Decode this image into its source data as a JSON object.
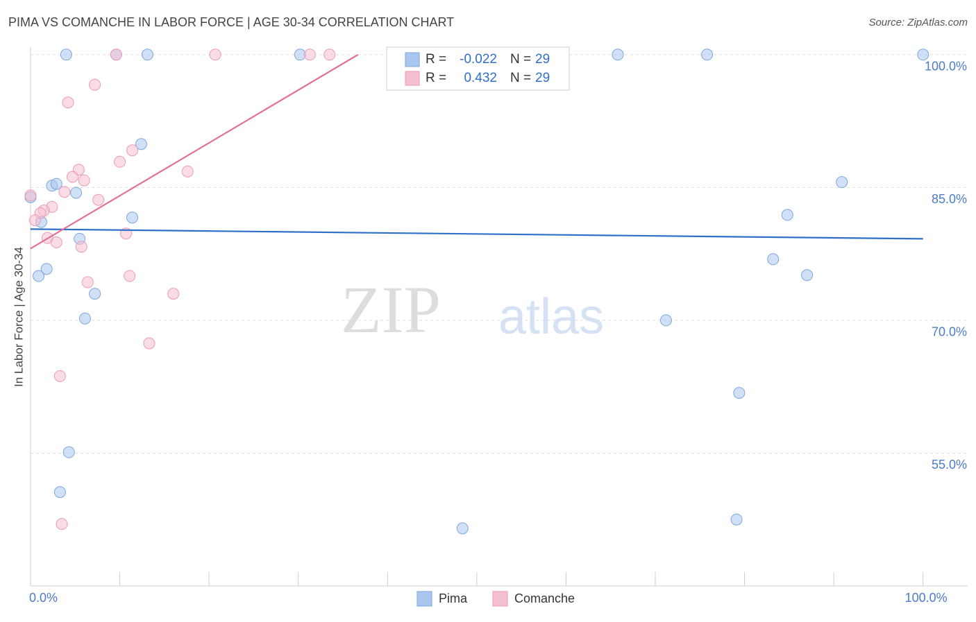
{
  "chart_data": {
    "type": "scatter",
    "title": "PIMA VS COMANCHE IN LABOR FORCE | AGE 30-34 CORRELATION CHART",
    "source": "Source: ZipAtlas.com",
    "y_label": "In Labor Force | Age 30-34",
    "watermark": [
      "ZIP",
      "atlas"
    ],
    "xlim": [
      0,
      105
    ],
    "ylim": [
      40,
      101
    ],
    "xticks": [
      {
        "value": 0,
        "label": "0.0%"
      },
      {
        "value": 100,
        "label": "100.0%"
      }
    ],
    "xtick_marks": [
      0,
      10,
      20,
      30,
      40,
      50,
      60,
      70,
      80,
      90,
      100
    ],
    "yticks": [
      {
        "value": 55,
        "label": "55.0%"
      },
      {
        "value": 70,
        "label": "70.0%"
      },
      {
        "value": 85,
        "label": "85.0%"
      },
      {
        "value": 100,
        "label": "100.0%"
      }
    ],
    "grid": true,
    "legend_labels": {
      "r": "R =",
      "n": "N ="
    },
    "series": [
      {
        "name": "Pima",
        "color": "#a9c6ef",
        "edge": "#7ea6dd",
        "line_color": "#2f6fca",
        "r": -0.022,
        "n": 29,
        "x": [
          4.0,
          9.6,
          13.1,
          30.2,
          65.8,
          75.8,
          100,
          0,
          2.4,
          2.9,
          5.1,
          1.2,
          12.4,
          11.4,
          5.5,
          1.8,
          0.9,
          7.2,
          6.1,
          4.3,
          3.3,
          48.4,
          90.9,
          84.8,
          83.2,
          87.0,
          71.2,
          79.4,
          79.1
        ],
        "values": [
          100,
          100,
          100,
          100,
          100,
          100,
          100,
          83.9,
          85.2,
          85.4,
          84.4,
          81.1,
          89.9,
          81.6,
          79.2,
          75.8,
          75.0,
          73.0,
          70.2,
          55.1,
          50.6,
          46.5,
          85.6,
          81.9,
          76.9,
          75.1,
          70.0,
          61.8,
          47.5
        ],
        "trend": {
          "x": [
            0,
            100
          ],
          "y": [
            80.3,
            79.2
          ]
        }
      },
      {
        "name": "Comanche",
        "color": "#f6bfd0",
        "edge": "#ec9ab6",
        "line_color": "#e36f98",
        "r": 0.432,
        "n": 29,
        "x": [
          9.6,
          20.7,
          31.3,
          33.5,
          7.2,
          4.2,
          11.4,
          10.0,
          5.4,
          17.6,
          4.7,
          6.0,
          3.8,
          0,
          7.6,
          2.4,
          1.5,
          1.1,
          0.5,
          10.7,
          1.9,
          2.9,
          5.7,
          6.4,
          11.1,
          16.0,
          13.3,
          3.3,
          3.5
        ],
        "values": [
          100,
          100,
          100,
          100,
          96.6,
          94.6,
          89.2,
          87.9,
          87.0,
          86.8,
          86.2,
          85.8,
          84.5,
          84.1,
          83.6,
          82.8,
          82.4,
          82.1,
          81.3,
          79.8,
          79.3,
          78.8,
          78.3,
          74.3,
          75.0,
          73.0,
          67.4,
          63.7,
          47.0
        ],
        "trend": {
          "x": [
            0,
            36.7
          ],
          "y": [
            78.1,
            100
          ]
        }
      }
    ]
  }
}
